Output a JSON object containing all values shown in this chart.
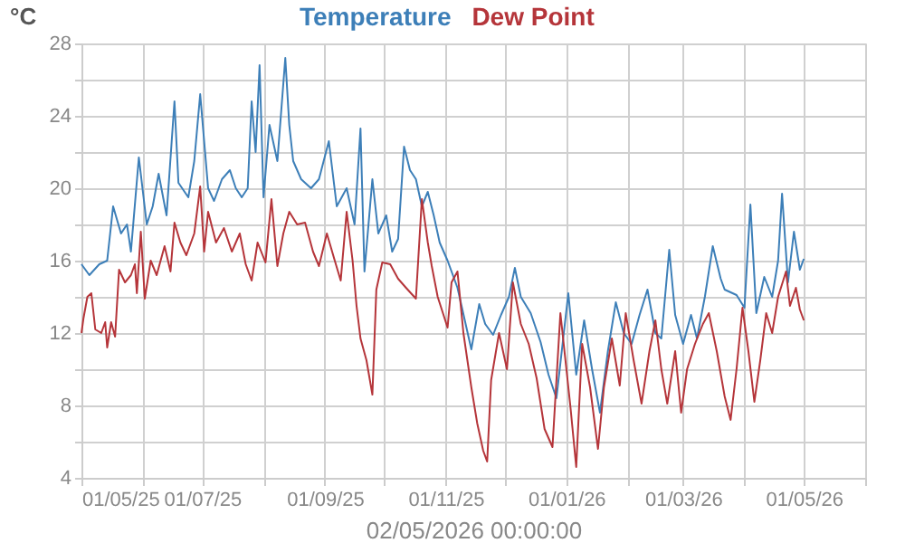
{
  "chart_data": {
    "type": "line",
    "xlabel": "02/05/2026 00:00:00",
    "ylabel": "°C",
    "legend": "top",
    "grid": true,
    "marker": "none",
    "line_style": "solid",
    "xlim": [
      "2025-05-01",
      "2026-06-01"
    ],
    "xticks": [
      {
        "value": "2025-05-01",
        "label": "01/05/25"
      },
      {
        "value": "2025-06-01",
        "label": null
      },
      {
        "value": "2025-07-01",
        "label": "01/07/25"
      },
      {
        "value": "2025-08-01",
        "label": null
      },
      {
        "value": "2025-09-01",
        "label": "01/09/25"
      },
      {
        "value": "2025-10-01",
        "label": null
      },
      {
        "value": "2025-11-01",
        "label": "01/11/25"
      },
      {
        "value": "2025-12-01",
        "label": null
      },
      {
        "value": "2026-01-01",
        "label": "01/01/26"
      },
      {
        "value": "2026-02-01",
        "label": null
      },
      {
        "value": "2026-03-01",
        "label": "01/03/26"
      },
      {
        "value": "2026-04-01",
        "label": null
      },
      {
        "value": "2026-05-01",
        "label": "01/05/26"
      },
      {
        "value": "2026-06-01",
        "label": null
      }
    ],
    "ylim": [
      4,
      28
    ],
    "yticks": [
      4,
      {
        "value": 6,
        "label": null
      },
      8,
      {
        "value": 10,
        "label": null
      },
      12,
      {
        "value": 14,
        "label": null
      },
      16,
      {
        "value": 18,
        "label": null
      },
      20,
      {
        "value": 22,
        "label": null
      },
      24,
      {
        "value": 26,
        "label": null
      },
      28
    ],
    "series": [
      {
        "name": "Temperature",
        "color": "#3d7fb8",
        "x": [
          "2025-05-01",
          "2025-05-05",
          "2025-05-10",
          "2025-05-14",
          "2025-05-17",
          "2025-05-21",
          "2025-05-24",
          "2025-05-26",
          "2025-05-30",
          "2025-06-03",
          "2025-06-06",
          "2025-06-09",
          "2025-06-13",
          "2025-06-17",
          "2025-06-19",
          "2025-06-24",
          "2025-06-27",
          "2025-06-30",
          "2025-07-04",
          "2025-07-07",
          "2025-07-11",
          "2025-07-15",
          "2025-07-18",
          "2025-07-21",
          "2025-07-24",
          "2025-07-26",
          "2025-07-28",
          "2025-07-30",
          "2025-08-01",
          "2025-08-04",
          "2025-08-08",
          "2025-08-12",
          "2025-08-14",
          "2025-08-16",
          "2025-08-20",
          "2025-08-25",
          "2025-08-29",
          "2025-09-03",
          "2025-09-07",
          "2025-09-12",
          "2025-09-16",
          "2025-09-19",
          "2025-09-21",
          "2025-09-25",
          "2025-09-28",
          "2025-10-02",
          "2025-10-05",
          "2025-10-08",
          "2025-10-11",
          "2025-10-14",
          "2025-10-17",
          "2025-10-20",
          "2025-10-23",
          "2025-10-26",
          "2025-10-29",
          "2025-11-02",
          "2025-11-07",
          "2025-11-14",
          "2025-11-18",
          "2025-11-21",
          "2025-11-25",
          "2025-11-29",
          "2025-12-03",
          "2025-12-06",
          "2025-12-09",
          "2025-12-14",
          "2025-12-19",
          "2025-12-23",
          "2025-12-27",
          "2026-01-02",
          "2026-01-06",
          "2026-01-10",
          "2026-01-14",
          "2026-01-18",
          "2026-01-22",
          "2026-01-26",
          "2026-01-30",
          "2026-02-03",
          "2026-02-07",
          "2026-02-11",
          "2026-02-15",
          "2026-02-18",
          "2026-02-22",
          "2026-02-25",
          "2026-03-01",
          "2026-03-05",
          "2026-03-08",
          "2026-03-12",
          "2026-03-16",
          "2026-03-20",
          "2026-03-22",
          "2026-03-28",
          "2026-04-01",
          "2026-04-04",
          "2026-04-07",
          "2026-04-11",
          "2026-04-15",
          "2026-04-18",
          "2026-04-20",
          "2026-04-23",
          "2026-04-26",
          "2026-04-29",
          "2026-05-01"
        ],
        "values": [
          15.8,
          15.2,
          15.8,
          16.0,
          19.0,
          17.5,
          18.0,
          16.5,
          21.7,
          18.0,
          19.0,
          20.8,
          18.5,
          24.8,
          20.3,
          19.5,
          21.5,
          25.2,
          20.0,
          19.3,
          20.5,
          21.0,
          20.0,
          19.5,
          20.0,
          24.8,
          22.0,
          26.8,
          19.5,
          23.5,
          21.5,
          27.2,
          23.5,
          21.5,
          20.5,
          20.0,
          20.5,
          22.6,
          19.0,
          20.0,
          18.0,
          23.3,
          15.4,
          20.5,
          17.5,
          18.5,
          16.5,
          17.2,
          22.3,
          21.0,
          20.5,
          19.0,
          19.8,
          18.5,
          17.0,
          16.0,
          14.5,
          11.1,
          13.6,
          12.5,
          11.9,
          13.0,
          14.0,
          15.6,
          14.0,
          13.1,
          11.5,
          9.7,
          8.4,
          14.2,
          9.7,
          12.7,
          10.0,
          7.6,
          11.0,
          13.7,
          12.0,
          11.4,
          13.0,
          14.4,
          12.0,
          11.7,
          16.6,
          13.0,
          11.4,
          13.0,
          11.7,
          14.0,
          16.8,
          15.0,
          14.4,
          14.1,
          13.4,
          19.1,
          13.1,
          15.1,
          14.0,
          16.0,
          19.7,
          14.8,
          17.6,
          15.5,
          16.1
        ]
      },
      {
        "name": "Dew Point",
        "color": "#b5353a",
        "x": [
          "2025-05-01",
          "2025-05-02",
          "2025-05-04",
          "2025-05-06",
          "2025-05-08",
          "2025-05-11",
          "2025-05-13",
          "2025-05-14",
          "2025-05-16",
          "2025-05-18",
          "2025-05-20",
          "2025-05-23",
          "2025-05-26",
          "2025-05-28",
          "2025-05-29",
          "2025-05-31",
          "2025-06-02",
          "2025-06-05",
          "2025-06-08",
          "2025-06-12",
          "2025-06-15",
          "2025-06-17",
          "2025-06-20",
          "2025-06-23",
          "2025-06-27",
          "2025-06-30",
          "2025-07-02",
          "2025-07-04",
          "2025-07-08",
          "2025-07-12",
          "2025-07-16",
          "2025-07-20",
          "2025-07-23",
          "2025-07-26",
          "2025-07-29",
          "2025-08-02",
          "2025-08-05",
          "2025-08-08",
          "2025-08-11",
          "2025-08-14",
          "2025-08-18",
          "2025-08-22",
          "2025-08-26",
          "2025-08-29",
          "2025-09-02",
          "2025-09-06",
          "2025-09-09",
          "2025-09-12",
          "2025-09-15",
          "2025-09-17",
          "2025-09-19",
          "2025-09-22",
          "2025-09-25",
          "2025-09-27",
          "2025-09-30",
          "2025-10-04",
          "2025-10-08",
          "2025-10-12",
          "2025-10-17",
          "2025-10-20",
          "2025-10-23",
          "2025-10-25",
          "2025-10-28",
          "2025-11-02",
          "2025-11-04",
          "2025-11-07",
          "2025-11-10",
          "2025-11-14",
          "2025-11-17",
          "2025-11-20",
          "2025-11-22",
          "2025-11-24",
          "2025-11-28",
          "2025-12-02",
          "2025-12-05",
          "2025-12-09",
          "2025-12-13",
          "2025-12-17",
          "2025-12-21",
          "2025-12-25",
          "2025-12-29",
          "2026-01-03",
          "2026-01-06",
          "2026-01-09",
          "2026-01-13",
          "2026-01-17",
          "2026-01-20",
          "2026-01-24",
          "2026-01-28",
          "2026-01-31",
          "2026-02-04",
          "2026-02-08",
          "2026-02-12",
          "2026-02-15",
          "2026-02-18",
          "2026-02-21",
          "2026-02-25",
          "2026-02-28",
          "2026-03-03",
          "2026-03-07",
          "2026-03-11",
          "2026-03-14",
          "2026-03-18",
          "2026-03-22",
          "2026-03-25",
          "2026-03-28",
          "2026-03-31",
          "2026-04-03",
          "2026-04-06",
          "2026-04-09",
          "2026-04-12",
          "2026-04-15",
          "2026-04-18",
          "2026-04-22",
          "2026-04-24",
          "2026-04-27",
          "2026-04-29",
          "2026-05-01"
        ],
        "values": [
          12.0,
          12.8,
          14.0,
          14.2,
          12.2,
          12.0,
          12.6,
          11.2,
          12.6,
          11.8,
          15.5,
          14.8,
          15.2,
          15.8,
          14.2,
          17.6,
          13.9,
          16.0,
          15.2,
          16.8,
          15.4,
          18.1,
          17.0,
          16.3,
          17.5,
          20.1,
          16.5,
          18.7,
          17.0,
          17.8,
          16.5,
          17.5,
          15.8,
          14.9,
          17.0,
          15.9,
          19.4,
          15.7,
          17.5,
          18.7,
          18.0,
          18.1,
          16.5,
          15.7,
          17.5,
          16.0,
          14.9,
          18.7,
          16.0,
          13.5,
          11.7,
          10.5,
          8.6,
          14.4,
          15.9,
          15.8,
          15.0,
          14.5,
          13.9,
          19.4,
          17.0,
          15.7,
          14.0,
          12.3,
          14.8,
          15.4,
          12.0,
          9.0,
          7.0,
          5.5,
          4.9,
          9.4,
          12.0,
          10.0,
          14.8,
          12.5,
          11.4,
          9.5,
          6.7,
          5.7,
          13.1,
          8.0,
          4.6,
          11.4,
          9.0,
          5.6,
          9.0,
          11.7,
          9.1,
          13.1,
          10.5,
          8.1,
          11.0,
          12.7,
          10.0,
          8.1,
          11.0,
          7.6,
          10.0,
          11.4,
          12.5,
          13.1,
          11.0,
          8.5,
          7.2,
          10.0,
          13.4,
          11.0,
          8.2,
          10.5,
          13.1,
          12.0,
          14.0,
          15.4,
          13.5,
          14.5,
          13.3,
          12.7
        ]
      }
    ]
  }
}
